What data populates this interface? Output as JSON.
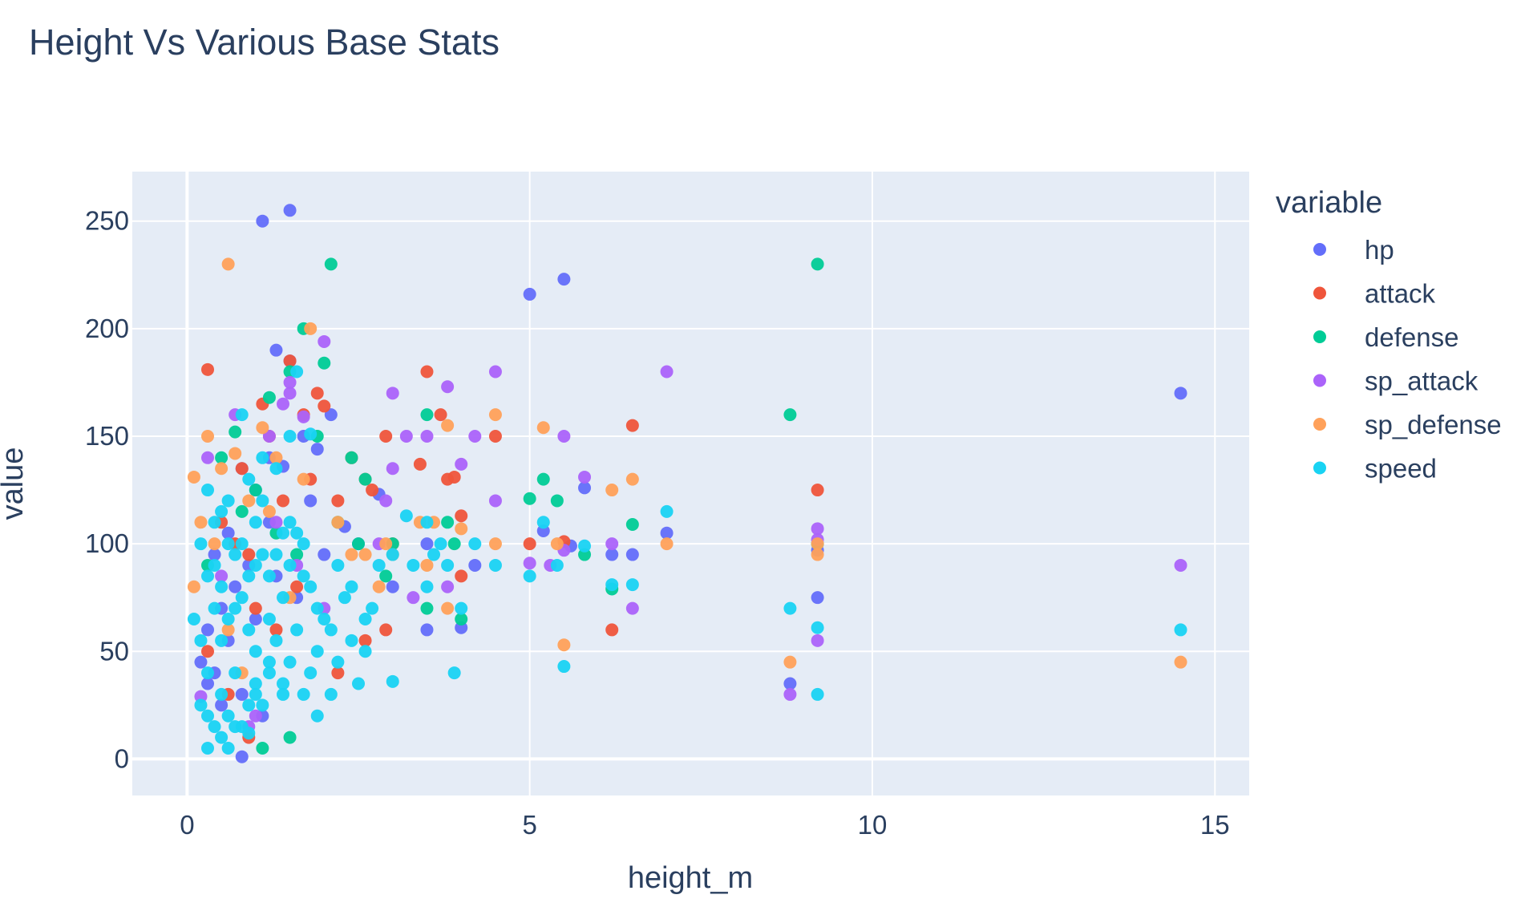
{
  "chart_data": {
    "type": "scatter",
    "title": "Height Vs Various Base Stats",
    "xlabel": "height_m",
    "ylabel": "value",
    "xlim": [
      -0.8,
      15.5
    ],
    "ylim": [
      -17,
      273
    ],
    "xticks": [
      0,
      5,
      10,
      15
    ],
    "yticks": [
      0,
      50,
      100,
      150,
      200,
      250
    ],
    "grid": true,
    "legend_title": "variable",
    "legend_position": "right",
    "series": [
      {
        "name": "hp",
        "color": "#636efa",
        "points": [
          [
            1.1,
            250
          ],
          [
            1.5,
            255
          ],
          [
            1.3,
            190
          ],
          [
            5.0,
            216
          ],
          [
            5.5,
            223
          ],
          [
            1.5,
            185
          ],
          [
            2.1,
            160
          ],
          [
            1.9,
            144
          ],
          [
            1.7,
            150
          ],
          [
            1.4,
            136
          ],
          [
            0.8,
            135
          ],
          [
            1.0,
            125
          ],
          [
            1.2,
            110
          ],
          [
            0.6,
            105
          ],
          [
            0.4,
            95
          ],
          [
            0.3,
            60
          ],
          [
            0.5,
            70
          ],
          [
            0.7,
            80
          ],
          [
            0.9,
            90
          ],
          [
            1.8,
            120
          ],
          [
            2.3,
            108
          ],
          [
            2.5,
            100
          ],
          [
            2.8,
            123
          ],
          [
            3.0,
            80
          ],
          [
            3.5,
            100
          ],
          [
            3.5,
            60
          ],
          [
            4.0,
            61
          ],
          [
            4.2,
            90
          ],
          [
            5.2,
            106
          ],
          [
            5.6,
            99
          ],
          [
            5.8,
            126
          ],
          [
            6.2,
            95
          ],
          [
            6.5,
            95
          ],
          [
            7.0,
            105
          ],
          [
            8.8,
            35
          ],
          [
            9.2,
            75
          ],
          [
            9.2,
            97
          ],
          [
            14.5,
            170
          ],
          [
            0.2,
            45
          ],
          [
            0.4,
            40
          ],
          [
            0.6,
            55
          ],
          [
            0.8,
            30
          ],
          [
            1.0,
            65
          ],
          [
            1.3,
            85
          ],
          [
            1.6,
            75
          ],
          [
            2.0,
            95
          ],
          [
            0.8,
            1
          ],
          [
            1.1,
            20
          ],
          [
            0.5,
            25
          ],
          [
            0.3,
            35
          ],
          [
            1.2,
            140
          ]
        ]
      },
      {
        "name": "attack",
        "color": "#ef553b",
        "points": [
          [
            0.3,
            181
          ],
          [
            1.1,
            165
          ],
          [
            1.5,
            185
          ],
          [
            1.9,
            170
          ],
          [
            2.0,
            164
          ],
          [
            1.7,
            160
          ],
          [
            2.4,
            140
          ],
          [
            2.6,
            130
          ],
          [
            2.2,
            120
          ],
          [
            1.2,
            150
          ],
          [
            0.8,
            135
          ],
          [
            0.5,
            110
          ],
          [
            0.7,
            100
          ],
          [
            0.9,
            95
          ],
          [
            1.4,
            120
          ],
          [
            1.8,
            130
          ],
          [
            2.7,
            125
          ],
          [
            3.0,
            100
          ],
          [
            2.9,
            150
          ],
          [
            3.4,
            137
          ],
          [
            3.5,
            180
          ],
          [
            3.7,
            160
          ],
          [
            3.8,
            130
          ],
          [
            3.9,
            131
          ],
          [
            4.0,
            113
          ],
          [
            4.0,
            85
          ],
          [
            4.5,
            150
          ],
          [
            5.0,
            100
          ],
          [
            5.5,
            101
          ],
          [
            6.2,
            60
          ],
          [
            6.5,
            155
          ],
          [
            9.2,
            125
          ],
          [
            2.9,
            60
          ],
          [
            2.6,
            55
          ],
          [
            2.2,
            40
          ],
          [
            0.9,
            10
          ],
          [
            0.6,
            30
          ],
          [
            0.3,
            50
          ],
          [
            1.0,
            70
          ],
          [
            1.3,
            60
          ],
          [
            1.6,
            80
          ]
        ]
      },
      {
        "name": "defense",
        "color": "#00cc96",
        "points": [
          [
            2.1,
            230
          ],
          [
            1.7,
            200
          ],
          [
            2.0,
            184
          ],
          [
            1.5,
            180
          ],
          [
            1.2,
            168
          ],
          [
            0.7,
            152
          ],
          [
            1.9,
            150
          ],
          [
            2.4,
            140
          ],
          [
            2.6,
            130
          ],
          [
            3.5,
            160
          ],
          [
            5.2,
            130
          ],
          [
            5.4,
            120
          ],
          [
            5.0,
            121
          ],
          [
            6.5,
            109
          ],
          [
            5.8,
            95
          ],
          [
            6.2,
            79
          ],
          [
            8.8,
            160
          ],
          [
            9.2,
            230
          ],
          [
            9.2,
            100
          ],
          [
            3.5,
            70
          ],
          [
            4.0,
            65
          ],
          [
            3.0,
            100
          ],
          [
            2.9,
            85
          ],
          [
            1.5,
            10
          ],
          [
            1.1,
            5
          ],
          [
            0.3,
            90
          ],
          [
            0.5,
            140
          ],
          [
            0.8,
            115
          ],
          [
            1.0,
            125
          ],
          [
            1.3,
            105
          ],
          [
            1.6,
            95
          ],
          [
            2.2,
            110
          ],
          [
            2.5,
            100
          ],
          [
            3.8,
            110
          ],
          [
            3.9,
            100
          ]
        ]
      },
      {
        "name": "sp_attack",
        "color": "#ab63fa",
        "points": [
          [
            2.0,
            194
          ],
          [
            1.5,
            175
          ],
          [
            1.5,
            170
          ],
          [
            1.4,
            165
          ],
          [
            1.7,
            159
          ],
          [
            1.2,
            150
          ],
          [
            0.7,
            160
          ],
          [
            0.3,
            140
          ],
          [
            3.0,
            170
          ],
          [
            3.2,
            150
          ],
          [
            3.5,
            150
          ],
          [
            3.8,
            173
          ],
          [
            4.0,
            137
          ],
          [
            4.2,
            150
          ],
          [
            4.5,
            180
          ],
          [
            4.5,
            120
          ],
          [
            3.8,
            80
          ],
          [
            3.3,
            75
          ],
          [
            2.8,
            100
          ],
          [
            3.0,
            135
          ],
          [
            2.9,
            120
          ],
          [
            5.0,
            91
          ],
          [
            5.3,
            90
          ],
          [
            5.5,
            97
          ],
          [
            5.8,
            131
          ],
          [
            6.2,
            100
          ],
          [
            6.5,
            70
          ],
          [
            7.0,
            180
          ],
          [
            8.8,
            30
          ],
          [
            9.2,
            55
          ],
          [
            9.2,
            107
          ],
          [
            9.2,
            102
          ],
          [
            14.5,
            90
          ],
          [
            5.5,
            150
          ],
          [
            2.0,
            70
          ],
          [
            1.0,
            20
          ],
          [
            0.9,
            15
          ],
          [
            0.2,
            29
          ],
          [
            0.5,
            85
          ],
          [
            1.3,
            110
          ],
          [
            1.6,
            90
          ]
        ]
      },
      {
        "name": "sp_defense",
        "color": "#ffa15a",
        "points": [
          [
            0.6,
            230
          ],
          [
            1.8,
            200
          ],
          [
            0.3,
            150
          ],
          [
            1.1,
            154
          ],
          [
            1.3,
            140
          ],
          [
            0.5,
            135
          ],
          [
            0.1,
            131
          ],
          [
            0.2,
            110
          ],
          [
            0.4,
            100
          ],
          [
            0.7,
            142
          ],
          [
            0.9,
            120
          ],
          [
            1.2,
            115
          ],
          [
            1.7,
            130
          ],
          [
            2.2,
            110
          ],
          [
            2.4,
            95
          ],
          [
            2.9,
            100
          ],
          [
            3.0,
            95
          ],
          [
            3.4,
            110
          ],
          [
            3.6,
            110
          ],
          [
            3.8,
            155
          ],
          [
            4.0,
            107
          ],
          [
            4.5,
            160
          ],
          [
            4.5,
            100
          ],
          [
            5.2,
            154
          ],
          [
            5.4,
            100
          ],
          [
            5.5,
            53
          ],
          [
            6.2,
            125
          ],
          [
            6.5,
            130
          ],
          [
            7.0,
            100
          ],
          [
            8.8,
            45
          ],
          [
            9.2,
            100
          ],
          [
            9.2,
            95
          ],
          [
            14.5,
            45
          ],
          [
            3.8,
            70
          ],
          [
            3.5,
            90
          ],
          [
            2.8,
            80
          ],
          [
            2.6,
            95
          ],
          [
            0.6,
            60
          ],
          [
            0.8,
            40
          ],
          [
            0.1,
            80
          ],
          [
            1.5,
            75
          ]
        ]
      },
      {
        "name": "speed",
        "color": "#19d3f3",
        "points": [
          [
            1.6,
            180
          ],
          [
            1.8,
            151
          ],
          [
            1.5,
            150
          ],
          [
            0.8,
            160
          ],
          [
            1.1,
            140
          ],
          [
            0.9,
            130
          ],
          [
            1.3,
            135
          ],
          [
            0.6,
            120
          ],
          [
            0.3,
            125
          ],
          [
            0.2,
            100
          ],
          [
            0.4,
            90
          ],
          [
            0.5,
            80
          ],
          [
            0.7,
            70
          ],
          [
            0.9,
            60
          ],
          [
            1.0,
            50
          ],
          [
            1.2,
            45
          ],
          [
            0.3,
            40
          ],
          [
            0.5,
            30
          ],
          [
            0.6,
            20
          ],
          [
            0.8,
            15
          ],
          [
            0.3,
            5
          ],
          [
            0.6,
            5
          ],
          [
            0.9,
            12
          ],
          [
            1.1,
            25
          ],
          [
            1.4,
            35
          ],
          [
            1.7,
            30
          ],
          [
            1.9,
            20
          ],
          [
            2.1,
            30
          ],
          [
            2.2,
            45
          ],
          [
            2.4,
            55
          ],
          [
            2.5,
            35
          ],
          [
            2.6,
            50
          ],
          [
            2.7,
            70
          ],
          [
            3.0,
            36
          ],
          [
            3.2,
            113
          ],
          [
            3.5,
            80
          ],
          [
            3.5,
            110
          ],
          [
            3.7,
            100
          ],
          [
            3.9,
            40
          ],
          [
            4.0,
            70
          ],
          [
            4.2,
            100
          ],
          [
            4.5,
            90
          ],
          [
            5.0,
            85
          ],
          [
            5.2,
            110
          ],
          [
            5.4,
            90
          ],
          [
            5.5,
            43
          ],
          [
            5.8,
            99
          ],
          [
            6.2,
            81
          ],
          [
            6.5,
            81
          ],
          [
            7.0,
            115
          ],
          [
            8.8,
            70
          ],
          [
            9.2,
            30
          ],
          [
            9.2,
            61
          ],
          [
            14.5,
            60
          ],
          [
            0.1,
            65
          ],
          [
            0.2,
            55
          ],
          [
            0.4,
            110
          ],
          [
            0.5,
            115
          ],
          [
            0.7,
            95
          ],
          [
            0.8,
            100
          ],
          [
            1.0,
            90
          ],
          [
            1.2,
            85
          ],
          [
            1.3,
            95
          ],
          [
            1.4,
            75
          ],
          [
            1.5,
            110
          ],
          [
            1.6,
            105
          ],
          [
            1.7,
            100
          ],
          [
            1.8,
            80
          ],
          [
            1.9,
            70
          ],
          [
            2.0,
            65
          ],
          [
            2.1,
            60
          ],
          [
            2.2,
            90
          ],
          [
            2.3,
            75
          ],
          [
            2.4,
            80
          ],
          [
            2.6,
            65
          ],
          [
            2.8,
            90
          ],
          [
            3.0,
            95
          ],
          [
            3.3,
            90
          ],
          [
            3.6,
            95
          ],
          [
            3.8,
            90
          ],
          [
            1.1,
            120
          ],
          [
            0.9,
            85
          ],
          [
            0.6,
            100
          ],
          [
            0.4,
            70
          ],
          [
            0.3,
            85
          ],
          [
            0.2,
            25
          ],
          [
            0.7,
            40
          ],
          [
            1.0,
            30
          ],
          [
            1.3,
            55
          ],
          [
            1.5,
            45
          ],
          [
            1.6,
            60
          ],
          [
            1.8,
            40
          ],
          [
            1.9,
            50
          ],
          [
            0.5,
            55
          ],
          [
            0.6,
            65
          ],
          [
            0.8,
            75
          ],
          [
            1.0,
            110
          ],
          [
            1.1,
            95
          ],
          [
            1.2,
            65
          ],
          [
            1.4,
            105
          ],
          [
            1.5,
            90
          ],
          [
            1.7,
            85
          ],
          [
            0.3,
            20
          ],
          [
            0.4,
            15
          ],
          [
            0.5,
            10
          ],
          [
            0.7,
            15
          ],
          [
            0.9,
            25
          ],
          [
            1.0,
            35
          ],
          [
            1.2,
            40
          ],
          [
            1.4,
            30
          ]
        ]
      }
    ]
  }
}
